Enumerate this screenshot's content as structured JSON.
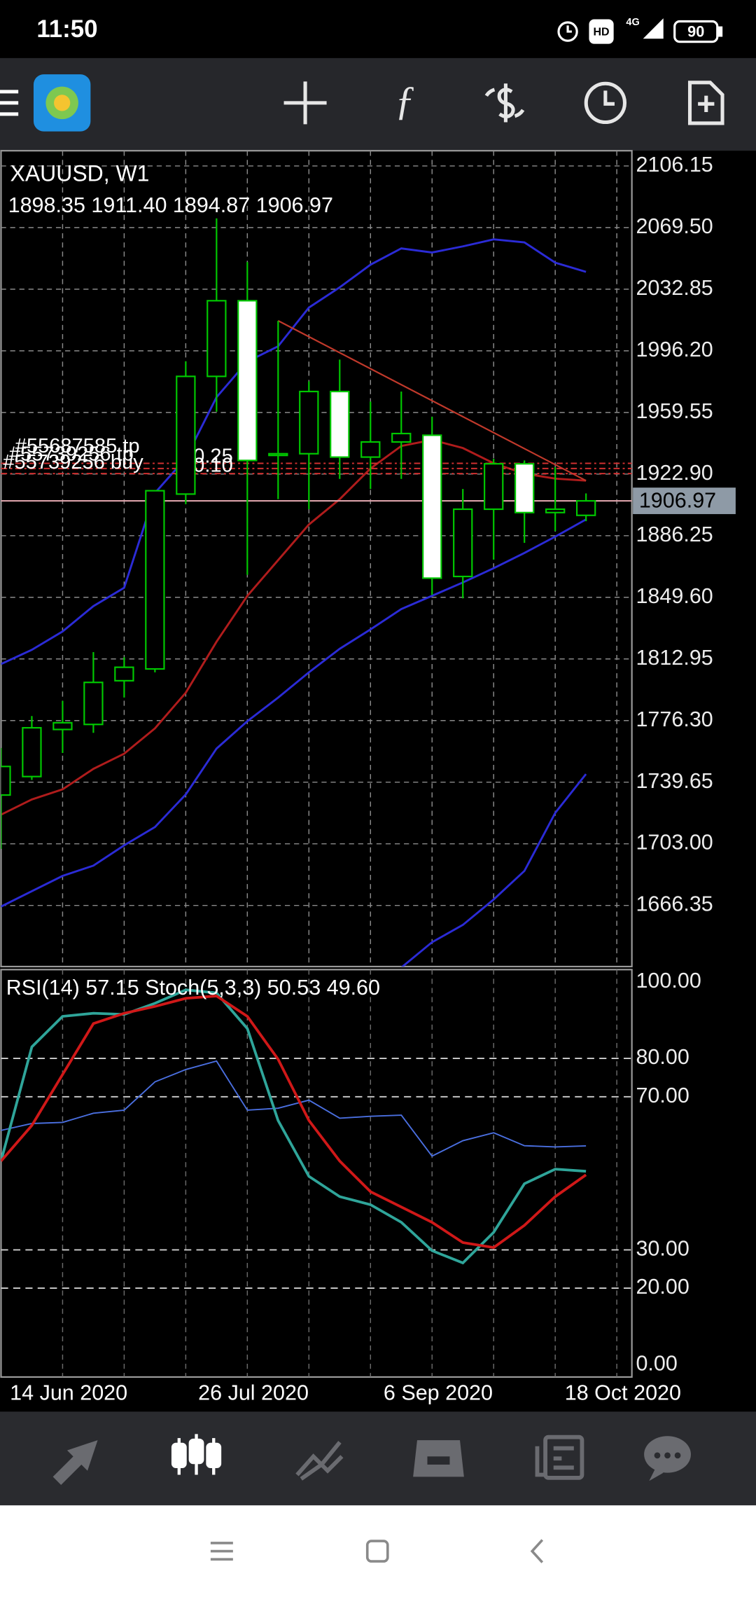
{
  "status_bar": {
    "time": "11:50",
    "network": "4G",
    "hd": "HD",
    "battery": "90"
  },
  "chart_data": [
    {
      "type": "candlestick",
      "title": "XAUUSD, W1",
      "subtitle": "1898.35 1911.40 1894.87 1906.97",
      "categories": [
        null,
        null,
        "14 Jun 2020",
        null,
        null,
        null,
        null,
        null,
        "26 Jul 2020",
        null,
        null,
        null,
        null,
        null,
        "6 Sep 2020",
        null,
        null,
        null,
        null,
        null,
        "18 Oct 2020"
      ],
      "open": [
        1732,
        1743,
        1771,
        1774,
        1800,
        1807,
        1911,
        1981,
        2026,
        1934,
        1935,
        1972,
        1933,
        1942,
        1946,
        1862,
        1902,
        1929,
        1900,
        1898.35,
        null
      ],
      "high": [
        1760,
        1779,
        1788,
        1817,
        1814,
        1913,
        1990,
        2075,
        2049,
        2014,
        1978,
        1991,
        1966,
        1972,
        1957,
        1914,
        1932,
        1931,
        1927,
        1911.4,
        null
      ],
      "low": [
        1700,
        1741,
        1757,
        1769,
        1790,
        1805,
        1905,
        1960,
        1863,
        1908,
        1902,
        1920,
        1914,
        1920,
        1851,
        1849,
        1872,
        1882,
        1889,
        1894.87,
        null
      ],
      "close": [
        1749,
        1772,
        1775,
        1799,
        1808,
        1913,
        1981,
        2026,
        1931,
        1935,
        1972,
        1933,
        1942,
        1947,
        1861,
        1902,
        1929,
        1900,
        1902,
        1906.97,
        null
      ],
      "bull_color": "#00c800",
      "bear_fill": "#ffffff",
      "series": [
        {
          "color": "#2b2bd6",
          "values": [
            1809.9,
            1818.4,
            1829.3,
            1844.4,
            1855.3,
            1911.7,
            1932.3,
            1968.6,
            1989.8,
            1998.9,
            2021.9,
            2034.0,
            2047.4,
            2057.1,
            2054.7,
            2058.3,
            2062.5,
            2060.7,
            2048.6,
            2043.2,
            null
          ]
        },
        {
          "color": "#b01c1c",
          "values": [
            1720.3,
            1729.4,
            1735.4,
            1747.6,
            1756.6,
            1771.7,
            1792.9,
            1823.2,
            1850.5,
            1871.7,
            1892.9,
            1908.0,
            1926.2,
            1939.6,
            1943.2,
            1938.4,
            1929.3,
            1923.2,
            1920.2,
            1919.0,
            null
          ]
        },
        {
          "color": "#2b2bd6",
          "values": [
            1665.7,
            1674.8,
            1683.9,
            1690.0,
            1702.1,
            1713.0,
            1732.4,
            1759.6,
            1775.9,
            1789.9,
            1805.0,
            1819.0,
            1830.5,
            1842.6,
            1850.5,
            1858.4,
            1866.9,
            1876.0,
            1885.7,
            1895.9,
            null
          ]
        },
        {
          "color": "#2b2bd6",
          "values": [
            null,
            null,
            null,
            null,
            null,
            null,
            null,
            null,
            null,
            null,
            null,
            null,
            null,
            1629.4,
            1644.5,
            1654.8,
            1669.9,
            1686.9,
            1721.4,
            1744.5,
            null
          ]
        }
      ],
      "trendline": {
        "color": "#c0392b",
        "values": [
          2014.1,
          1919.0
        ]
      },
      "orders": [
        {
          "label": "#55687585 tp",
          "volume": "0.25",
          "price": 1929.3
        },
        {
          "label": "#55739256 tp",
          "volume": "0.10",
          "price": 1926.2
        },
        {
          "label": "#55739256 buy",
          "price": 1923.2
        }
      ],
      "order_color": "#d03030",
      "last_price": 1906.97,
      "ylim": [
        1630.0,
        2115.2
      ],
      "yticks": [
        2106.15,
        {
          "value": 2069.5,
          "label": "2069.50"
        },
        2032.85,
        {
          "value": 1996.2,
          "label": "1996.20"
        },
        1959.55,
        {
          "value": 1922.9,
          "label": "1922.90"
        },
        1886.25,
        {
          "value": 1849.6,
          "label": "1849.60"
        },
        1812.95,
        {
          "value": 1776.3,
          "label": "1776.30"
        },
        1739.65,
        {
          "value": 1703.0,
          "label": "1703.00"
        },
        1666.35
      ],
      "grid": true
    },
    {
      "type": "line",
      "title": "RSI(14) 57.15 Stoch(5,3,3) 50.53 49.60",
      "series": [
        {
          "color": "#4a6fe0",
          "width": 1.3,
          "values": [
            61.2,
            63.0,
            63.3,
            65.7,
            66.5,
            73.9,
            77.1,
            79.3,
            66.5,
            67.0,
            69.1,
            64.4,
            64.9,
            65.2,
            54.5,
            58.5,
            60.6,
            57.2,
            56.9,
            57.15,
            null
          ]
        },
        {
          "color": "#2fa59a",
          "width": 2.6,
          "values": [
            53.2,
            83.0,
            91.0,
            91.8,
            91.5,
            94.4,
            97.9,
            97.1,
            87.8,
            63.8,
            49.2,
            43.9,
            41.8,
            37.2,
            29.8,
            26.6,
            34.6,
            47.3,
            51.1,
            50.53,
            null
          ]
        },
        {
          "color": "#d01818",
          "width": 2.6,
          "values": [
            53.2,
            62.5,
            75.8,
            89.1,
            91.8,
            93.6,
            95.7,
            96.3,
            91.0,
            79.8,
            63.8,
            53.2,
            45.2,
            41.2,
            37.2,
            31.9,
            30.6,
            36.4,
            43.9,
            49.6,
            null
          ]
        }
      ],
      "ylim": [
        -3.2,
        103.2
      ],
      "yticks": [
        {
          "value": 100,
          "label": "100.00"
        },
        {
          "value": 80,
          "label": "80.00"
        },
        {
          "value": 70,
          "label": "70.00"
        },
        {
          "value": 30,
          "label": "30.00"
        },
        {
          "value": 20,
          "label": "20.00"
        },
        {
          "value": 0,
          "label": "0.00"
        }
      ],
      "dashed_levels": [
        80,
        70,
        30,
        20
      ]
    }
  ]
}
